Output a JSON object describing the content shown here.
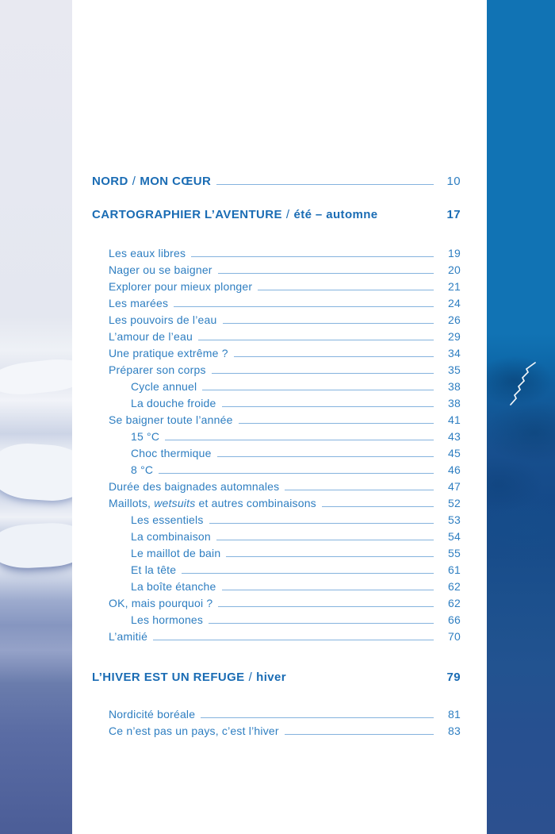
{
  "colors": {
    "heading_blue": "#1a6cb4",
    "entry_blue": "#2e7ec1",
    "leader_blue": "#85b3de",
    "right_strip_blue": "#1173b4",
    "right_strip_navy": "#2c508f",
    "left_strip_ice": "#e8e9f1",
    "left_strip_slate": "#4b5d97",
    "page_white": "#ffffff"
  },
  "decor": {
    "left_strip": "ice-floes-photo",
    "right_strip": "deep-blue-water-photo",
    "crack_mark": "white-zigzag-ice-crack"
  },
  "sections": [
    {
      "title": "NORD",
      "separator": "/",
      "subtitle": "MON CŒUR",
      "page": "10",
      "entries": []
    },
    {
      "title": "CARTOGRAPHIER L’AVENTURE",
      "separator": "/",
      "subtitle": "été – automne",
      "page": "17",
      "entries": [
        {
          "level": 1,
          "page": "19",
          "parts": [
            {
              "text": "Les eaux libres"
            }
          ]
        },
        {
          "level": 1,
          "page": "20",
          "parts": [
            {
              "text": "Nager ou se baigner"
            }
          ]
        },
        {
          "level": 1,
          "page": "21",
          "parts": [
            {
              "text": "Explorer pour mieux plonger"
            }
          ]
        },
        {
          "level": 1,
          "page": "24",
          "parts": [
            {
              "text": "Les marées"
            }
          ]
        },
        {
          "level": 1,
          "page": "26",
          "parts": [
            {
              "text": "Les pouvoirs de l’eau"
            }
          ]
        },
        {
          "level": 1,
          "page": "29",
          "parts": [
            {
              "text": "L’amour de l’eau"
            }
          ]
        },
        {
          "level": 1,
          "page": "34",
          "parts": [
            {
              "text": "Une pratique extrême ?"
            }
          ]
        },
        {
          "level": 1,
          "page": "35",
          "parts": [
            {
              "text": "Préparer son corps"
            }
          ]
        },
        {
          "level": 2,
          "page": "38",
          "parts": [
            {
              "text": "Cycle annuel"
            }
          ]
        },
        {
          "level": 2,
          "page": "38",
          "parts": [
            {
              "text": "La douche froide"
            }
          ]
        },
        {
          "level": 1,
          "page": "41",
          "parts": [
            {
              "text": "Se baigner toute l’année"
            }
          ]
        },
        {
          "level": 2,
          "page": "43",
          "parts": [
            {
              "text": "15 °C"
            }
          ]
        },
        {
          "level": 2,
          "page": "45",
          "parts": [
            {
              "text": "Choc thermique"
            }
          ]
        },
        {
          "level": 2,
          "page": "46",
          "parts": [
            {
              "text": "8 °C"
            }
          ]
        },
        {
          "level": 1,
          "page": "47",
          "parts": [
            {
              "text": "Durée des baignades automnales"
            }
          ]
        },
        {
          "level": 1,
          "page": "52",
          "parts": [
            {
              "text": "Maillots, "
            },
            {
              "text": "wetsuits",
              "italic": true
            },
            {
              "text": " et autres combinaisons"
            }
          ]
        },
        {
          "level": 2,
          "page": "53",
          "parts": [
            {
              "text": "Les essentiels"
            }
          ]
        },
        {
          "level": 2,
          "page": "54",
          "parts": [
            {
              "text": "La combinaison"
            }
          ]
        },
        {
          "level": 2,
          "page": "55",
          "parts": [
            {
              "text": "Le maillot de bain"
            }
          ]
        },
        {
          "level": 2,
          "page": "61",
          "parts": [
            {
              "text": "Et la tête"
            }
          ]
        },
        {
          "level": 2,
          "page": "62",
          "parts": [
            {
              "text": "La boîte étanche"
            }
          ]
        },
        {
          "level": 1,
          "page": "62",
          "parts": [
            {
              "text": "OK, mais pourquoi ?"
            }
          ]
        },
        {
          "level": 2,
          "page": "66",
          "parts": [
            {
              "text": "Les hormones"
            }
          ]
        },
        {
          "level": 1,
          "page": "70",
          "parts": [
            {
              "text": "L’amitié"
            }
          ]
        }
      ]
    },
    {
      "title": "L’HIVER EST UN REFUGE",
      "separator": "/",
      "subtitle": "hiver",
      "page": "79",
      "entries": [
        {
          "level": 1,
          "page": "81",
          "parts": [
            {
              "text": "Nordicité boréale"
            }
          ]
        },
        {
          "level": 1,
          "page": "83",
          "parts": [
            {
              "text": "Ce n’est pas un pays, c’est l’hiver"
            }
          ]
        }
      ]
    }
  ]
}
